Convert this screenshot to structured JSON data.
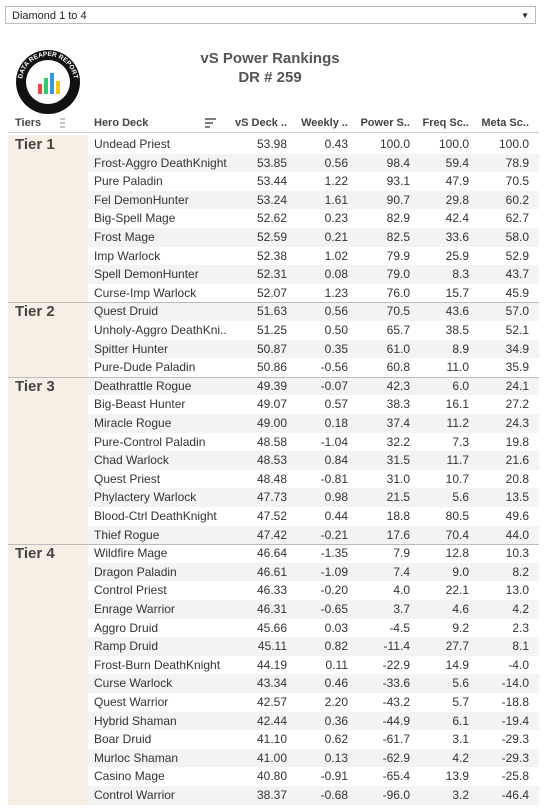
{
  "dropdown": "Diamond 1 to 4",
  "logo": "DATA REAPER REPORT",
  "header": {
    "title": "vS Power Rankings",
    "subtitle": "DR # 259"
  },
  "table": {
    "columns": [
      "Tiers",
      "Hero Deck",
      "vS Deck ..",
      "Weekly ..",
      "Power S..",
      "Freq Sc..",
      "Meta Sc.."
    ],
    "tiers": [
      {
        "name": "Tier 1",
        "rows": [
          [
            "Undead Priest",
            "53.98",
            "0.43",
            "100.0",
            "100.0",
            "100.0"
          ],
          [
            "Frost-Aggro DeathKnight",
            "53.85",
            "0.56",
            "98.4",
            "59.4",
            "78.9"
          ],
          [
            "Pure Paladin",
            "53.44",
            "1.22",
            "93.1",
            "47.9",
            "70.5"
          ],
          [
            "Fel DemonHunter",
            "53.24",
            "1.61",
            "90.7",
            "29.8",
            "60.2"
          ],
          [
            "Big-Spell Mage",
            "52.62",
            "0.23",
            "82.9",
            "42.4",
            "62.7"
          ],
          [
            "Frost Mage",
            "52.59",
            "0.21",
            "82.5",
            "33.6",
            "58.0"
          ],
          [
            "Imp Warlock",
            "52.38",
            "1.02",
            "79.9",
            "25.9",
            "52.9"
          ],
          [
            "Spell DemonHunter",
            "52.31",
            "0.08",
            "79.0",
            "8.3",
            "43.7"
          ],
          [
            "Curse-Imp Warlock",
            "52.07",
            "1.23",
            "76.0",
            "15.7",
            "45.9"
          ]
        ]
      },
      {
        "name": "Tier 2",
        "rows": [
          [
            "Quest Druid",
            "51.63",
            "0.56",
            "70.5",
            "43.6",
            "57.0"
          ],
          [
            "Unholy-Aggro DeathKni..",
            "51.25",
            "0.50",
            "65.7",
            "38.5",
            "52.1"
          ],
          [
            "Spitter Hunter",
            "50.87",
            "0.35",
            "61.0",
            "8.9",
            "34.9"
          ],
          [
            "Pure-Dude Paladin",
            "50.86",
            "-0.56",
            "60.8",
            "11.0",
            "35.9"
          ]
        ]
      },
      {
        "name": "Tier 3",
        "rows": [
          [
            "Deathrattle Rogue",
            "49.39",
            "-0.07",
            "42.3",
            "6.0",
            "24.1"
          ],
          [
            "Big-Beast Hunter",
            "49.07",
            "0.57",
            "38.3",
            "16.1",
            "27.2"
          ],
          [
            "Miracle Rogue",
            "49.00",
            "0.18",
            "37.4",
            "11.2",
            "24.3"
          ],
          [
            "Pure-Control Paladin",
            "48.58",
            "-1.04",
            "32.2",
            "7.3",
            "19.8"
          ],
          [
            "Chad Warlock",
            "48.53",
            "0.84",
            "31.5",
            "11.7",
            "21.6"
          ],
          [
            "Quest Priest",
            "48.48",
            "-0.81",
            "31.0",
            "10.7",
            "20.8"
          ],
          [
            "Phylactery Warlock",
            "47.73",
            "0.98",
            "21.5",
            "5.6",
            "13.5"
          ],
          [
            "Blood-Ctrl DeathKnight",
            "47.52",
            "0.44",
            "18.8",
            "80.5",
            "49.6"
          ],
          [
            "Thief Rogue",
            "47.42",
            "-0.21",
            "17.6",
            "70.4",
            "44.0"
          ]
        ]
      },
      {
        "name": "Tier 4",
        "rows": [
          [
            "Wildfire Mage",
            "46.64",
            "-1.35",
            "7.9",
            "12.8",
            "10.3"
          ],
          [
            "Dragon Paladin",
            "46.61",
            "-1.09",
            "7.4",
            "9.0",
            "8.2"
          ],
          [
            "Control Priest",
            "46.33",
            "-0.20",
            "4.0",
            "22.1",
            "13.0"
          ],
          [
            "Enrage Warrior",
            "46.31",
            "-0.65",
            "3.7",
            "4.6",
            "4.2"
          ],
          [
            "Aggro Druid",
            "45.66",
            "0.03",
            "-4.5",
            "9.2",
            "2.3"
          ],
          [
            "Ramp Druid",
            "45.11",
            "0.82",
            "-11.4",
            "27.7",
            "8.1"
          ],
          [
            "Frost-Burn DeathKnight",
            "44.19",
            "0.11",
            "-22.9",
            "14.9",
            "-4.0"
          ],
          [
            "Curse Warlock",
            "43.34",
            "0.46",
            "-33.6",
            "5.6",
            "-14.0"
          ],
          [
            "Quest Warrior",
            "42.57",
            "2.20",
            "-43.2",
            "5.7",
            "-18.8"
          ],
          [
            "Hybrid Shaman",
            "42.44",
            "0.36",
            "-44.9",
            "6.1",
            "-19.4"
          ],
          [
            "Boar Druid",
            "41.10",
            "0.62",
            "-61.7",
            "3.1",
            "-29.3"
          ],
          [
            "Murloc Shaman",
            "41.00",
            "0.13",
            "-62.9",
            "4.2",
            "-29.3"
          ],
          [
            "Casino Mage",
            "40.80",
            "-0.91",
            "-65.4",
            "13.9",
            "-25.8"
          ],
          [
            "Control Warrior",
            "38.37",
            "-0.68",
            "-96.0",
            "3.2",
            "-46.4"
          ]
        ]
      }
    ]
  }
}
